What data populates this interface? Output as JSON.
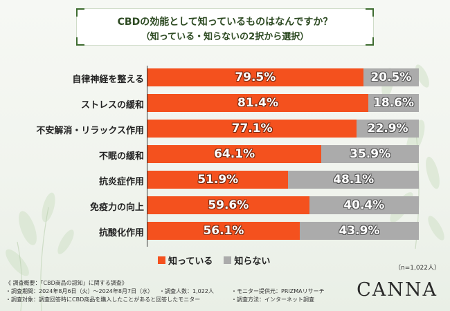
{
  "title": {
    "line1": "CBDの効能として知っているものはなんですか？",
    "line2": "（知っている・知らないの2択から選択）"
  },
  "chart_data": {
    "type": "bar",
    "orientation": "horizontal-stacked",
    "title": "CBDの効能として知っているものはなんですか？",
    "categories": [
      "自律神経を整える",
      "ストレスの緩和",
      "不安解消・リラックス作用",
      "不眠の緩和",
      "抗炎症作用",
      "免疫力の向上",
      "抗酸化作用"
    ],
    "series": [
      {
        "name": "知っている",
        "color": "#f4511e",
        "values": [
          79.5,
          81.4,
          77.1,
          64.1,
          51.9,
          59.6,
          56.1
        ]
      },
      {
        "name": "知らない",
        "color": "#ababab",
        "values": [
          20.5,
          18.6,
          22.9,
          35.9,
          48.1,
          40.4,
          43.9
        ]
      }
    ],
    "value_unit": "%",
    "xlim": [
      0,
      100
    ],
    "legend": "bottom"
  },
  "sample_note": "（n=1,022人）",
  "footer": {
    "heading": "《 調査概要：「CBD商品の認知」に関する調査》",
    "period": "・調査期間：2024年8月6日（火）〜2024年8月7日（水）",
    "respondents": "・調査人数：1,022人",
    "provider": "・モニター提供元：PRIZMAリサーチ",
    "target": "・調査対象：調査回答時にCBD商品を購入したことがあると回答したモニター",
    "method": "・調査方法：インターネット調査"
  },
  "brand": "CANNA"
}
